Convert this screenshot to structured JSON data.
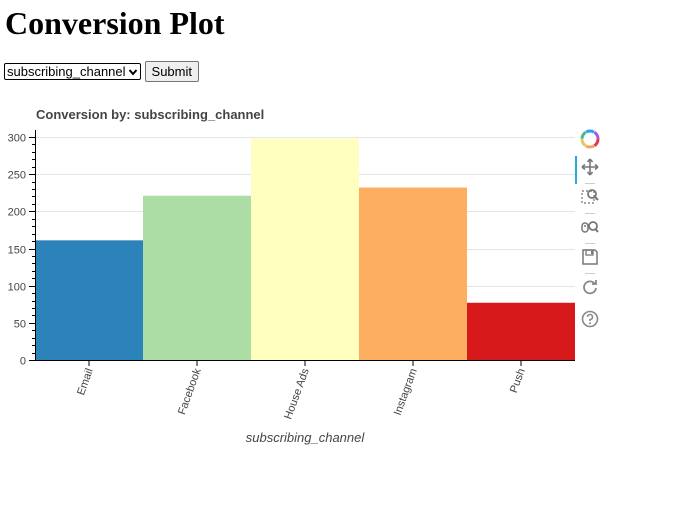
{
  "page": {
    "heading": "Conversion Plot"
  },
  "form": {
    "select_value": "subscribing_channel",
    "submit_label": "Submit"
  },
  "toolbar": {
    "tools": [
      "bokeh-logo-icon",
      "pan-icon",
      "box-zoom-icon",
      "wheel-zoom-icon",
      "save-icon",
      "reset-icon",
      "help-icon"
    ],
    "active_tool": "pan-icon"
  },
  "chart_data": {
    "type": "bar",
    "title": "Conversion by: subscribing_channel",
    "xlabel": "subscribing_channel",
    "ylabel": "",
    "categories": [
      "Email",
      "Facebook",
      "House Ads",
      "Instagram",
      "Push"
    ],
    "values": [
      161,
      221,
      298,
      232,
      77
    ],
    "colors": [
      "#2b83ba",
      "#abdda4",
      "#ffffbf",
      "#fdae61",
      "#d7191c"
    ],
    "ylim": [
      0,
      300
    ],
    "yticks": [
      0,
      50,
      100,
      150,
      200,
      250,
      300
    ],
    "grid": true,
    "legend": "none"
  }
}
